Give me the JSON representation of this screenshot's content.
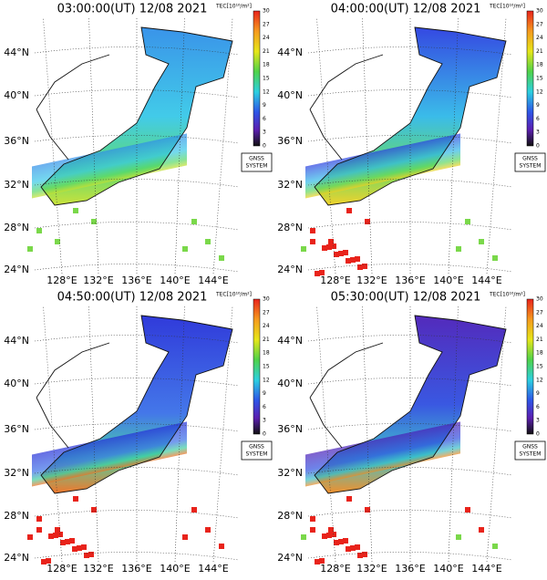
{
  "panels": [
    {
      "title": "03:00:00(UT) 12/08 2021"
    },
    {
      "title": "04:00:00(UT) 12/08 2021"
    },
    {
      "title": "04:50:00(UT) 12/08 2021"
    },
    {
      "title": "05:30:00(UT) 12/08 2021"
    }
  ],
  "lat_labels": [
    "44°N",
    "40°N",
    "36°N",
    "32°N",
    "28°N",
    "24°N"
  ],
  "lon_labels": [
    "128°E",
    "132°E",
    "136°E",
    "140°E",
    "144°E"
  ],
  "colorbar": {
    "label": "TEC[10¹⁶/m²]",
    "ticks": [
      "30",
      "27",
      "24",
      "21",
      "18",
      "15",
      "12",
      "9",
      "6",
      "3",
      "0"
    ]
  },
  "badge": [
    "GNSS",
    "SYSTEM"
  ]
}
